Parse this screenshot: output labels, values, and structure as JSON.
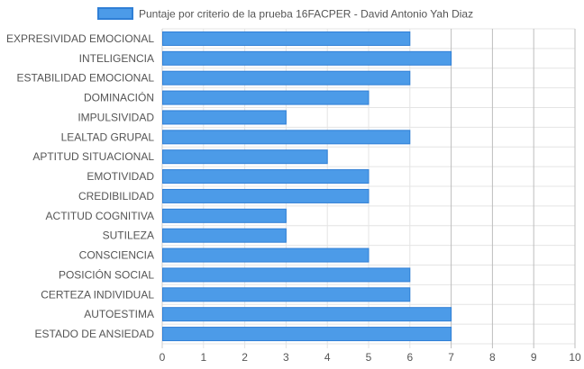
{
  "chart_data": {
    "type": "bar",
    "orientation": "horizontal",
    "legend": {
      "position": "top",
      "label": "Puntaje por criterio de la prueba 16FACPER - David Antonio Yah Diaz"
    },
    "categories": [
      "EXPRESIVIDAD EMOCIONAL",
      "INTELIGENCIA",
      "ESTABILIDAD EMOCIONAL",
      "DOMINACIÓN",
      "IMPULSIVIDAD",
      "LEALTAD GRUPAL",
      "APTITUD SITUACIONAL",
      "EMOTIVIDAD",
      "CREDIBILIDAD",
      "ACTITUD COGNITIVA",
      "SUTILEZA",
      "CONSCIENCIA",
      "POSICIÓN SOCIAL",
      "CERTEZA INDIVIDUAL",
      "AUTOESTIMA",
      "ESTADO DE ANSIEDAD"
    ],
    "series": [
      {
        "name": "Puntaje por criterio de la prueba 16FACPER - David Antonio Yah Diaz",
        "values": [
          6,
          7,
          6,
          5,
          3,
          6,
          4,
          5,
          5,
          3,
          3,
          5,
          6,
          6,
          7,
          7
        ]
      }
    ],
    "xlim": [
      0,
      10
    ],
    "x_ticks": [
      "0",
      "1",
      "2",
      "3",
      "4",
      "5",
      "6",
      "7",
      "8",
      "9",
      "10"
    ],
    "grid": true,
    "colors": {
      "bar_fill": "#4c9be8",
      "bar_stroke": "#2f7fd6",
      "grid": "#e4e4e4",
      "grid_major": "#bdbdbd"
    }
  }
}
